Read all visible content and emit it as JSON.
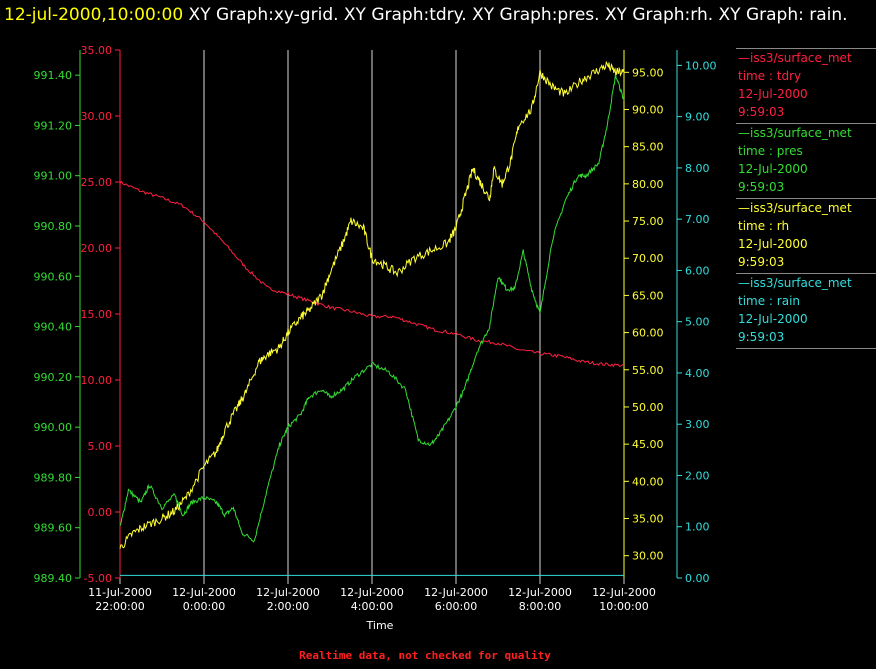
{
  "header": {
    "timestamp": "12-jul-2000,10:00:00",
    "graphs": "XY Graph:xy-grid.  XY Graph:tdry.  XY Graph:pres.  XY Graph:rh.  XY Graph: rain."
  },
  "footer": {
    "note": "Realtime data, not checked for quality"
  },
  "legend": [
    {
      "line": "—iss3/surface_met",
      "var": "time : tdry",
      "date": "12-Jul-2000",
      "time": "9:59:03",
      "color": "#ff2040"
    },
    {
      "line": "—iss3/surface_met",
      "var": "time : pres",
      "date": "12-Jul-2000",
      "time": "9:59:03",
      "color": "#33dd33"
    },
    {
      "line": "—iss3/surface_met",
      "var": "time : rh",
      "date": "12-Jul-2000",
      "time": "9:59:03",
      "color": "#ffff33"
    },
    {
      "line": "—iss3/surface_met",
      "var": "time : rain",
      "date": "12-Jul-2000",
      "time": "9:59:03",
      "color": "#33dddd"
    }
  ],
  "chart_data": {
    "type": "line",
    "xlabel": "Time",
    "x_ticks": [
      [
        "11-Jul-2000",
        "22:00:00"
      ],
      [
        "12-Jul-2000",
        "0:00:00"
      ],
      [
        "12-Jul-2000",
        "2:00:00"
      ],
      [
        "12-Jul-2000",
        "4:00:00"
      ],
      [
        "12-Jul-2000",
        "6:00:00"
      ],
      [
        "12-Jul-2000",
        "8:00:00"
      ],
      [
        "12-Jul-2000",
        "10:00:00"
      ]
    ],
    "x_range_hours": [
      -2,
      10
    ],
    "grid": "vertical lines at x ticks",
    "axes": {
      "pres": {
        "color": "#33dd33",
        "side": "left-outer",
        "range": [
          989.4,
          991.5
        ],
        "ticks": [
          "989.40",
          "989.60",
          "989.80",
          "990.00",
          "990.20",
          "990.40",
          "990.60",
          "990.80",
          "991.00",
          "991.20",
          "991.40"
        ]
      },
      "tdry": {
        "color": "#ff2040",
        "side": "left-inner",
        "range": [
          -5,
          35
        ],
        "ticks": [
          "-5.00",
          "0.00",
          "5.00",
          "10.00",
          "15.00",
          "20.00",
          "25.00",
          "30.00",
          "35.00"
        ]
      },
      "rh": {
        "color": "#ffff33",
        "side": "right-inner",
        "range": [
          27,
          98
        ],
        "ticks": [
          "30.00",
          "35.00",
          "40.00",
          "45.00",
          "50.00",
          "55.00",
          "60.00",
          "65.00",
          "70.00",
          "75.00",
          "80.00",
          "85.00",
          "90.00",
          "95.00"
        ]
      },
      "rain": {
        "color": "#33dddd",
        "side": "right-outer",
        "range": [
          0,
          10.3
        ],
        "ticks": [
          "0.00",
          "1.00",
          "2.00",
          "3.00",
          "4.00",
          "5.00",
          "6.00",
          "7.00",
          "8.00",
          "9.00",
          "10.00"
        ]
      }
    },
    "series": [
      {
        "name": "tdry",
        "axis": "tdry",
        "color": "#ff2040",
        "x": [
          -2,
          -1.5,
          -1,
          -0.5,
          0,
          0.5,
          1,
          1.5,
          2,
          2.5,
          3,
          3.5,
          4,
          4.5,
          5,
          5.5,
          6,
          6.5,
          7,
          7.5,
          8,
          8.5,
          9,
          9.5,
          10
        ],
        "y": [
          25,
          24.3,
          23.8,
          23.2,
          22.0,
          20.3,
          18.5,
          17.0,
          16.5,
          16.0,
          15.5,
          15.2,
          14.8,
          14.8,
          14.3,
          13.8,
          13.5,
          13.0,
          12.8,
          12.3,
          12.0,
          11.8,
          11.4,
          11.2,
          11.1
        ]
      },
      {
        "name": "pres",
        "axis": "pres",
        "color": "#33dd33",
        "x": [
          -2,
          -1.8,
          -1.5,
          -1.3,
          -1,
          -0.7,
          -0.5,
          -0.3,
          0,
          0.3,
          0.5,
          0.7,
          0.9,
          1.2,
          1.5,
          1.8,
          2,
          2.3,
          2.5,
          2.8,
          3,
          3.3,
          3.6,
          4,
          4.4,
          4.8,
          5.1,
          5.4,
          5.6,
          5.9,
          6.2,
          6.5,
          6.8,
          7.0,
          7.2,
          7.4,
          7.6,
          7.8,
          8.0,
          8.3,
          8.6,
          8.9,
          9.1,
          9.4,
          9.6,
          9.8,
          10
        ],
        "y": [
          989.6,
          989.75,
          989.7,
          989.77,
          989.68,
          989.73,
          989.65,
          989.7,
          989.72,
          989.7,
          989.65,
          989.68,
          989.58,
          989.55,
          989.75,
          989.93,
          990.0,
          990.05,
          990.12,
          990.15,
          990.12,
          990.15,
          990.2,
          990.25,
          990.22,
          990.15,
          989.95,
          989.93,
          989.97,
          990.05,
          990.15,
          990.3,
          990.4,
          990.6,
          990.55,
          990.55,
          990.7,
          990.55,
          990.45,
          990.75,
          990.9,
          991.0,
          991.0,
          991.05,
          991.2,
          991.4,
          991.3
        ]
      },
      {
        "name": "rh",
        "axis": "rh",
        "color": "#ffff33",
        "x": [
          -2,
          -1.7,
          -1.4,
          -1.0,
          -0.7,
          -0.4,
          0,
          0.3,
          0.5,
          0.8,
          1.0,
          1.3,
          1.5,
          1.8,
          2.0,
          2.3,
          2.5,
          2.8,
          3.0,
          3.3,
          3.5,
          3.8,
          4.0,
          4.3,
          4.6,
          5.0,
          5.4,
          5.8,
          6.0,
          6.2,
          6.4,
          6.6,
          6.8,
          6.9,
          7.1,
          7.3,
          7.5,
          7.8,
          8.0,
          8.3,
          8.6,
          9.0,
          9.3,
          9.6,
          9.8,
          10
        ],
        "y": [
          31,
          33,
          34,
          35,
          36,
          38,
          42,
          44,
          47,
          50,
          52,
          56,
          57,
          58,
          60,
          62,
          63,
          65,
          68,
          72,
          75,
          74,
          70,
          69,
          68,
          70,
          71,
          72,
          74,
          78,
          82,
          80,
          78,
          82,
          80,
          83,
          88,
          90,
          95,
          93,
          92,
          94,
          95,
          96,
          95,
          95
        ]
      },
      {
        "name": "rain",
        "axis": "rain",
        "color": "#33dddd",
        "x": [
          -2,
          10
        ],
        "y": [
          0.05,
          0.05
        ]
      }
    ]
  }
}
